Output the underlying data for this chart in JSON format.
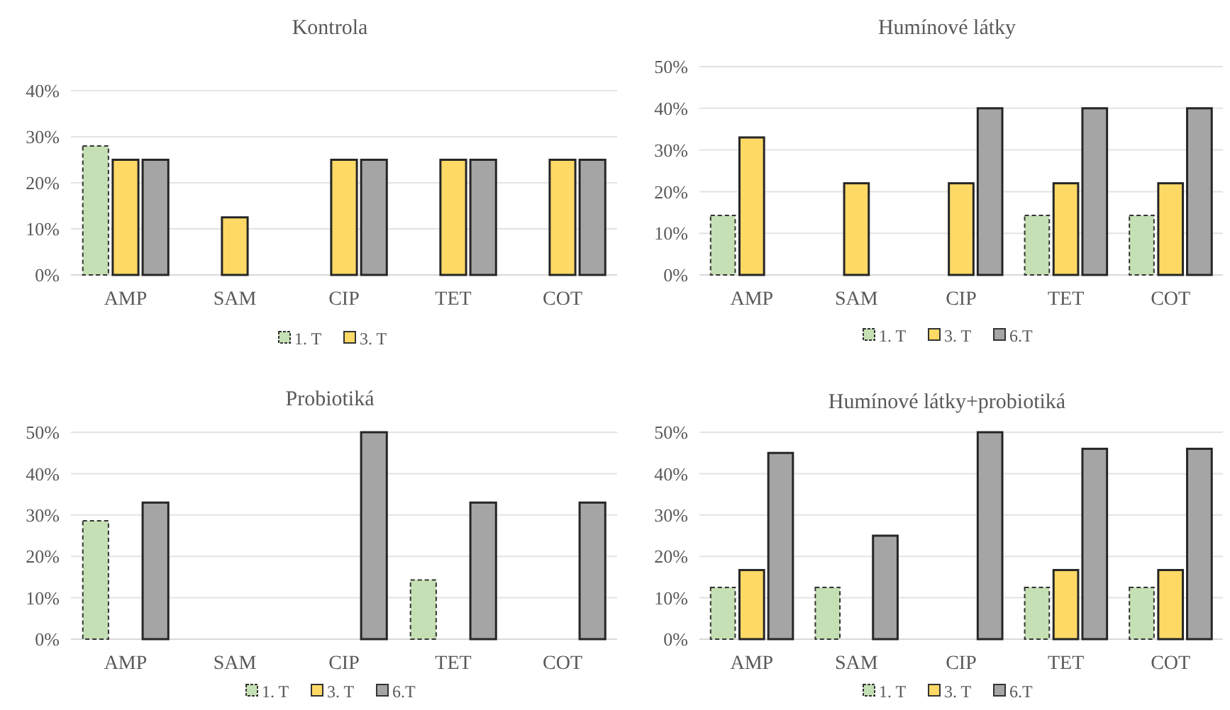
{
  "chart_data": [
    {
      "type": "bar",
      "title": "Kontrola",
      "categories": [
        "AMP",
        "SAM",
        "CIP",
        "TET",
        "COT"
      ],
      "series": [
        {
          "name": "1. T",
          "color": "#c5e0b4",
          "values": [
            28,
            null,
            null,
            null,
            null
          ]
        },
        {
          "name": "3. T",
          "color": "#ffd966",
          "values": [
            25,
            12.5,
            25,
            25,
            25
          ]
        },
        {
          "color": "#a5a5a5",
          "values": [
            25,
            null,
            25,
            25,
            25
          ]
        }
      ],
      "ylim": [
        0,
        40
      ],
      "yticks": [
        {
          "value": 0,
          "label": "0%"
        },
        {
          "value": 10,
          "label": "10%"
        },
        {
          "value": 20,
          "label": "20%"
        },
        {
          "value": 30,
          "label": "30%"
        },
        {
          "value": 40,
          "label": "40%"
        }
      ],
      "grid": "y",
      "legend": "bottom"
    },
    {
      "type": "bar",
      "title": "Humínové látky",
      "categories": [
        "AMP",
        "SAM",
        "CIP",
        "TET",
        "COT"
      ],
      "series": [
        {
          "name": "1. T",
          "color": "#c5e0b4",
          "values": [
            14.3,
            null,
            null,
            14.3,
            14.3
          ]
        },
        {
          "name": "3. T",
          "color": "#ffd966",
          "values": [
            33,
            22,
            22,
            22,
            22
          ]
        },
        {
          "name": "6.T",
          "color": "#a5a5a5",
          "values": [
            null,
            null,
            40,
            40,
            40
          ]
        }
      ],
      "ylim": [
        0,
        50
      ],
      "yticks": [
        {
          "value": 0,
          "label": "0%"
        },
        {
          "value": 10,
          "label": "10%"
        },
        {
          "value": 20,
          "label": "20%"
        },
        {
          "value": 30,
          "label": "30%"
        },
        {
          "value": 40,
          "label": "40%"
        },
        {
          "value": 50,
          "label": "50%"
        }
      ],
      "grid": "y",
      "legend": "bottom"
    },
    {
      "type": "bar",
      "title": "Probiotiká",
      "categories": [
        "AMP",
        "SAM",
        "CIP",
        "TET",
        "COT"
      ],
      "series": [
        {
          "name": "1. T",
          "color": "#c5e0b4",
          "values": [
            28.6,
            null,
            null,
            14.3,
            null
          ]
        },
        {
          "name": "3. T",
          "color": "#ffd966",
          "values": [
            null,
            null,
            null,
            null,
            null
          ]
        },
        {
          "name": "6.T",
          "color": "#a5a5a5",
          "values": [
            33,
            null,
            50,
            33,
            33
          ]
        }
      ],
      "ylim": [
        0,
        50
      ],
      "yticks": [
        {
          "value": 0,
          "label": "0%"
        },
        {
          "value": 10,
          "label": "10%"
        },
        {
          "value": 20,
          "label": "20%"
        },
        {
          "value": 30,
          "label": "30%"
        },
        {
          "value": 40,
          "label": "40%"
        },
        {
          "value": 50,
          "label": "50%"
        }
      ],
      "grid": "y",
      "legend": "bottom"
    },
    {
      "type": "bar",
      "title": "Humínové látky+probiotiká",
      "categories": [
        "AMP",
        "SAM",
        "CIP",
        "TET",
        "COT"
      ],
      "series": [
        {
          "name": "1. T",
          "color": "#c5e0b4",
          "values": [
            12.5,
            12.5,
            null,
            12.5,
            12.5
          ]
        },
        {
          "name": "3. T",
          "color": "#ffd966",
          "values": [
            16.7,
            null,
            null,
            16.7,
            16.7
          ]
        },
        {
          "name": "6.T",
          "color": "#a5a5a5",
          "values": [
            45,
            25,
            50,
            46,
            46
          ]
        }
      ],
      "ylim": [
        0,
        50
      ],
      "yticks": [
        {
          "value": 0,
          "label": "0%"
        },
        {
          "value": 10,
          "label": "10%"
        },
        {
          "value": 20,
          "label": "20%"
        },
        {
          "value": 30,
          "label": "30%"
        },
        {
          "value": 40,
          "label": "40%"
        },
        {
          "value": 50,
          "label": "50%"
        }
      ],
      "grid": "y",
      "legend": "bottom"
    }
  ]
}
